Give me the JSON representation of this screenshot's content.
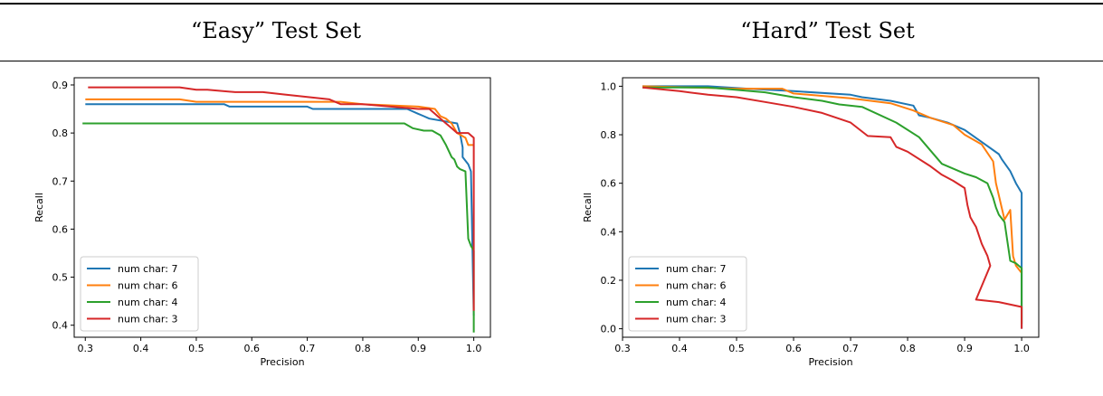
{
  "header": {
    "left_title": "“Easy” Test Set",
    "right_title": "“Hard” Test Set"
  },
  "chart_data": [
    {
      "type": "line",
      "title": "",
      "xlabel": "Precision",
      "ylabel": "Recall",
      "xlim": [
        0.28,
        1.03
      ],
      "ylim": [
        0.375,
        0.915
      ],
      "xticks": [
        "0.3",
        "0.4",
        "0.5",
        "0.6",
        "0.7",
        "0.8",
        "0.9",
        "1.0"
      ],
      "yticks": [
        "0.4",
        "0.5",
        "0.6",
        "0.7",
        "0.8",
        "0.9"
      ],
      "legend_position": "lower-left",
      "grid": false,
      "series": [
        {
          "name": "num char: 7",
          "color": "#1f77b4",
          "x": [
            0.3,
            0.55,
            0.56,
            0.7,
            0.71,
            0.88,
            0.9,
            0.91,
            0.92,
            0.97,
            0.975,
            0.98,
            0.98,
            0.99,
            0.995,
            1.0
          ],
          "y": [
            0.86,
            0.86,
            0.855,
            0.855,
            0.85,
            0.85,
            0.84,
            0.835,
            0.83,
            0.82,
            0.8,
            0.77,
            0.75,
            0.735,
            0.72,
            0.42
          ]
        },
        {
          "name": "num char: 6",
          "color": "#ff7f0e",
          "x": [
            0.3,
            0.47,
            0.5,
            0.76,
            0.8,
            0.9,
            0.93,
            0.94,
            0.95,
            0.96,
            0.97,
            0.985,
            0.99,
            1.0
          ],
          "y": [
            0.87,
            0.87,
            0.865,
            0.865,
            0.86,
            0.855,
            0.85,
            0.835,
            0.83,
            0.82,
            0.8,
            0.79,
            0.775,
            0.775
          ]
        },
        {
          "name": "num char: 4",
          "color": "#2ca02c",
          "x": [
            0.295,
            0.875,
            0.89,
            0.91,
            0.925,
            0.94,
            0.95,
            0.96,
            0.965,
            0.97,
            0.975,
            0.985,
            0.99,
            0.995,
            1.0,
            1.0
          ],
          "y": [
            0.82,
            0.82,
            0.81,
            0.805,
            0.805,
            0.795,
            0.775,
            0.75,
            0.745,
            0.73,
            0.725,
            0.72,
            0.58,
            0.565,
            0.555,
            0.385
          ]
        },
        {
          "name": "num char: 3",
          "color": "#d62728",
          "x": [
            0.305,
            0.47,
            0.5,
            0.52,
            0.57,
            0.62,
            0.66,
            0.7,
            0.74,
            0.76,
            0.8,
            0.85,
            0.9,
            0.92,
            0.93,
            0.94,
            0.95,
            0.96,
            0.97,
            0.98,
            0.99,
            0.995,
            1.0,
            1.0
          ],
          "y": [
            0.895,
            0.895,
            0.89,
            0.89,
            0.885,
            0.885,
            0.88,
            0.875,
            0.87,
            0.86,
            0.86,
            0.855,
            0.85,
            0.85,
            0.84,
            0.83,
            0.82,
            0.81,
            0.8,
            0.8,
            0.8,
            0.795,
            0.79,
            0.43
          ]
        }
      ]
    },
    {
      "type": "line",
      "title": "",
      "xlabel": "Precision",
      "ylabel": "Recall",
      "xlim": [
        0.3,
        1.03
      ],
      "ylim": [
        -0.035,
        1.035
      ],
      "xticks": [
        "0.3",
        "0.4",
        "0.5",
        "0.6",
        "0.7",
        "0.8",
        "0.9",
        "1.0"
      ],
      "yticks": [
        "0.0",
        "0.2",
        "0.4",
        "0.6",
        "0.8",
        "1.0"
      ],
      "legend_position": "lower-left",
      "grid": false,
      "series": [
        {
          "name": "num char: 7",
          "color": "#1f77b4",
          "x": [
            0.335,
            0.45,
            0.52,
            0.6,
            0.7,
            0.72,
            0.77,
            0.81,
            0.82,
            0.84,
            0.87,
            0.9,
            0.93,
            0.96,
            0.965,
            0.98,
            0.99,
            1.0,
            1.0
          ],
          "y": [
            1.0,
            1.0,
            0.99,
            0.98,
            0.965,
            0.955,
            0.94,
            0.92,
            0.88,
            0.87,
            0.85,
            0.82,
            0.77,
            0.72,
            0.7,
            0.65,
            0.6,
            0.56,
            0.0
          ]
        },
        {
          "name": "num char: 6",
          "color": "#ff7f0e",
          "x": [
            0.335,
            0.5,
            0.58,
            0.6,
            0.7,
            0.77,
            0.81,
            0.82,
            0.84,
            0.88,
            0.9,
            0.93,
            0.95,
            0.955,
            0.96,
            0.965,
            0.97,
            0.98,
            0.985,
            0.99,
            1.0
          ],
          "y": [
            1.0,
            0.99,
            0.99,
            0.97,
            0.95,
            0.93,
            0.9,
            0.89,
            0.87,
            0.84,
            0.8,
            0.76,
            0.69,
            0.6,
            0.55,
            0.5,
            0.45,
            0.49,
            0.3,
            0.26,
            0.23
          ]
        },
        {
          "name": "num char: 4",
          "color": "#2ca02c",
          "x": [
            0.335,
            0.45,
            0.5,
            0.55,
            0.6,
            0.65,
            0.68,
            0.72,
            0.78,
            0.82,
            0.86,
            0.9,
            0.92,
            0.94,
            0.95,
            0.955,
            0.96,
            0.97,
            0.98,
            0.99,
            1.0,
            1.0
          ],
          "y": [
            0.995,
            0.995,
            0.985,
            0.975,
            0.955,
            0.94,
            0.925,
            0.915,
            0.85,
            0.79,
            0.68,
            0.64,
            0.625,
            0.6,
            0.54,
            0.5,
            0.47,
            0.44,
            0.28,
            0.27,
            0.25,
            0.02
          ]
        },
        {
          "name": "num char: 3",
          "color": "#d62728",
          "x": [
            0.335,
            0.4,
            0.45,
            0.5,
            0.55,
            0.6,
            0.65,
            0.7,
            0.73,
            0.77,
            0.78,
            0.8,
            0.84,
            0.86,
            0.88,
            0.9,
            0.905,
            0.91,
            0.915,
            0.92,
            0.93,
            0.94,
            0.945,
            0.92,
            0.96,
            1.0,
            1.0
          ],
          "y": [
            0.995,
            0.98,
            0.965,
            0.955,
            0.935,
            0.915,
            0.89,
            0.85,
            0.795,
            0.79,
            0.75,
            0.73,
            0.67,
            0.635,
            0.61,
            0.58,
            0.51,
            0.46,
            0.44,
            0.42,
            0.35,
            0.3,
            0.26,
            0.12,
            0.11,
            0.09,
            0.0
          ]
        }
      ]
    }
  ]
}
